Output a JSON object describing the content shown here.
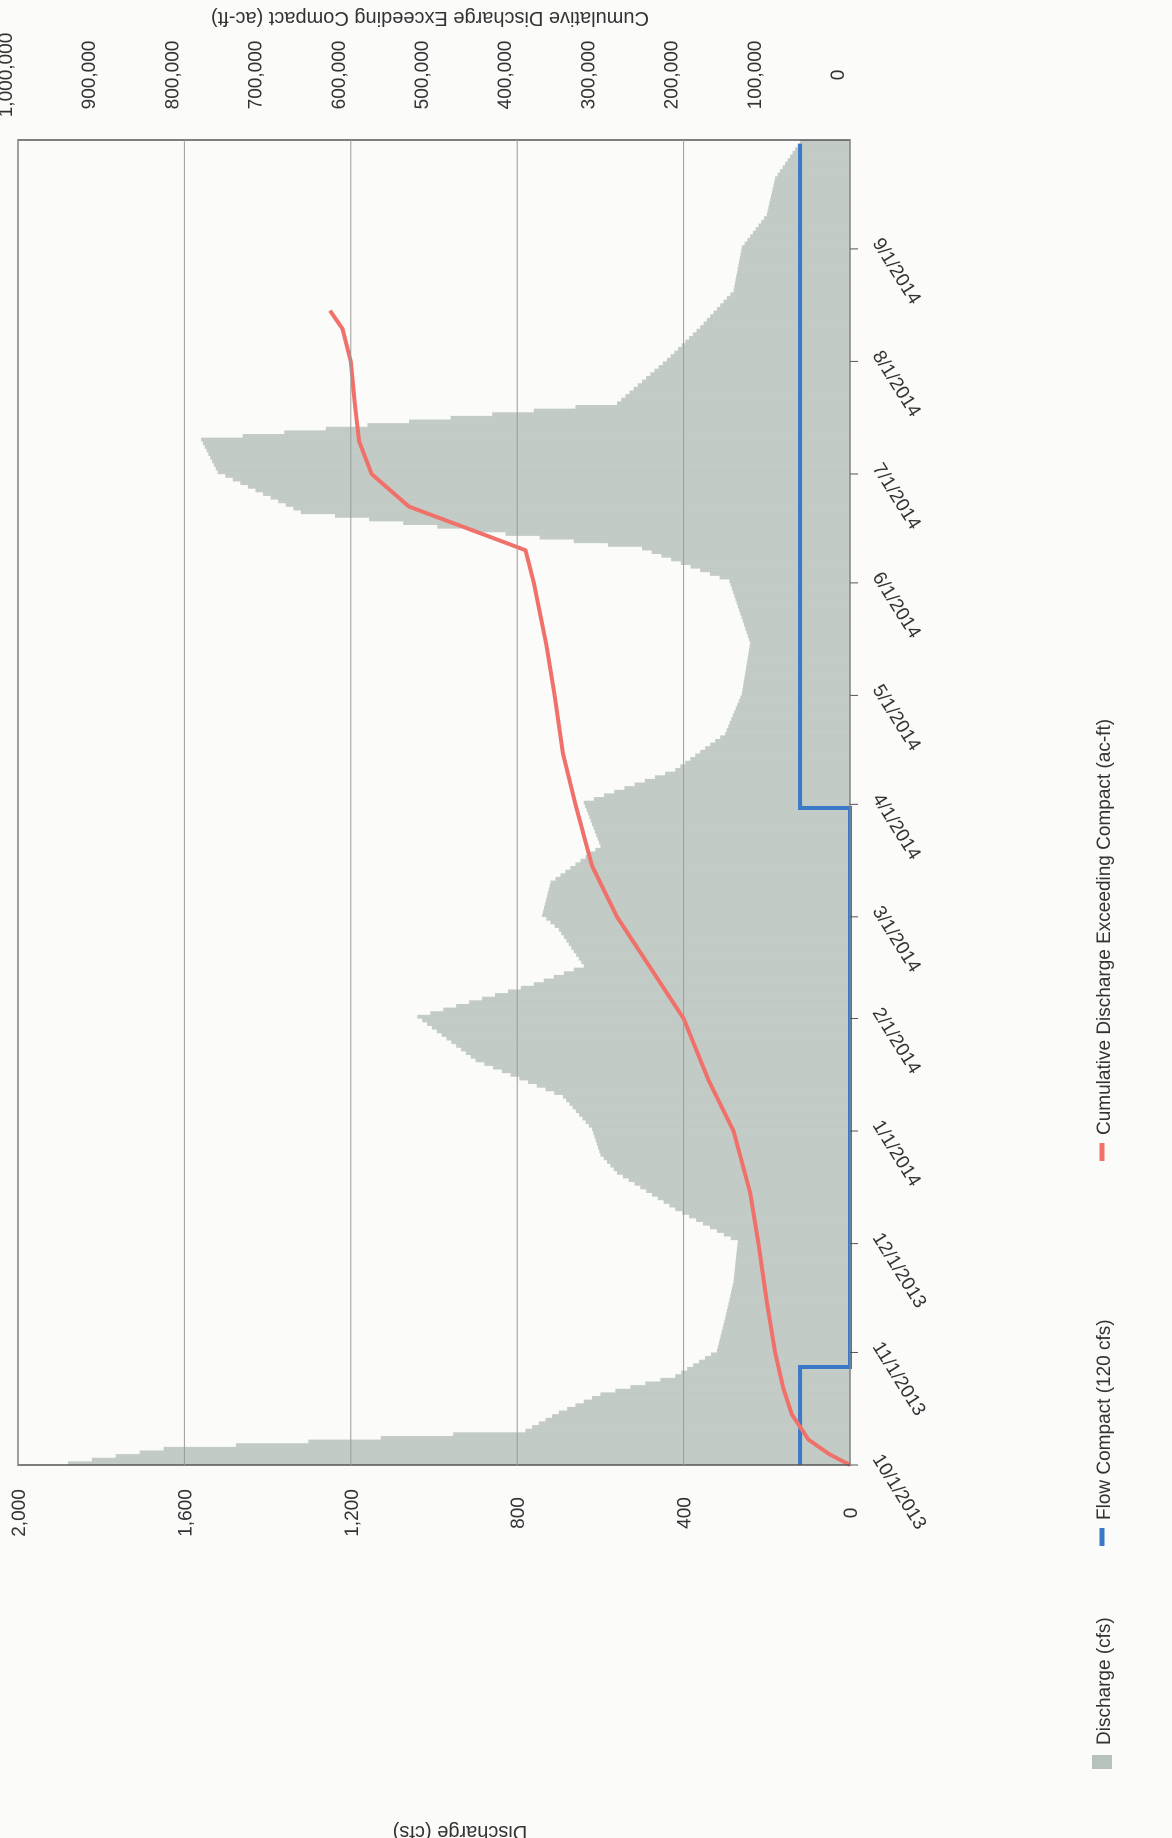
{
  "chart_data": {
    "type": "bar",
    "orientation": "rotated-90-clockwise",
    "x_axis": {
      "label": "",
      "tick_labels": [
        "10/1/2013",
        "11/1/2013",
        "12/1/2013",
        "1/1/2014",
        "2/1/2014",
        "3/1/2014",
        "4/1/2014",
        "5/1/2014",
        "6/1/2014",
        "7/1/2014",
        "8/1/2014",
        "9/1/2014"
      ],
      "range_days": [
        0,
        365
      ]
    },
    "y_axis_left": {
      "label": "Discharge (cfs)",
      "tick_labels": [
        "0",
        "400",
        "800",
        "1,200",
        "1,600",
        "2,000"
      ],
      "ticks": [
        0,
        400,
        800,
        1200,
        1600,
        2000
      ],
      "ylim": [
        0,
        2000
      ]
    },
    "y_axis_right": {
      "label": "Cumulative Discharge Exceeding Compact (ac-ft)",
      "tick_labels": [
        "0",
        "100,000",
        "200,000",
        "300,000",
        "400,000",
        "500,000",
        "600,000",
        "700,000",
        "800,000",
        "900,000",
        "1,000,000"
      ],
      "ticks": [
        0,
        100000,
        200000,
        300000,
        400000,
        500000,
        600000,
        700000,
        800000,
        900000,
        1000000
      ],
      "ylim": [
        0,
        1000000
      ]
    },
    "grid": true,
    "legend": {
      "placement": "bottom",
      "entries": [
        {
          "label": "Discharge (cfs)",
          "color": "#b8c2bc",
          "kind": "bar"
        },
        {
          "label": "Flow Compact (120 cfs)",
          "color": "#3a78c8",
          "kind": "line"
        },
        {
          "label": "Cumulative Discharge Exceeding Compact (ac-ft)",
          "color": "#f0706a",
          "kind": "line"
        }
      ]
    },
    "series": [
      {
        "name": "Discharge (cfs)",
        "type": "bar",
        "axis": "left",
        "color": "#b8c2bc",
        "x": [
          "10/1/2013",
          "10/5/2013",
          "10/10/2013",
          "10/15/2013",
          "10/20/2013",
          "10/25/2013",
          "11/1/2013",
          "11/10/2013",
          "11/20/2013",
          "12/1/2013",
          "12/10/2013",
          "12/20/2013",
          "12/25/2013",
          "1/1/2014",
          "1/10/2014",
          "1/20/2014",
          "2/1/2014",
          "2/10/2014",
          "2/15/2014",
          "2/25/2014",
          "3/1/2014",
          "3/10/2014",
          "3/20/2014",
          "4/1/2014",
          "4/10/2014",
          "4/20/2014",
          "5/1/2014",
          "5/15/2014",
          "6/1/2014",
          "6/10/2014",
          "6/20/2014",
          "7/1/2014",
          "7/10/2014",
          "7/20/2014",
          "8/1/2014",
          "8/10/2014",
          "8/20/2014",
          "9/1/2014",
          "9/10/2014",
          "9/20/2014",
          "9/30/2014"
        ],
        "values": [
          1880,
          1650,
          780,
          700,
          600,
          420,
          320,
          300,
          280,
          270,
          420,
          560,
          600,
          620,
          690,
          900,
          1040,
          760,
          640,
          700,
          740,
          720,
          600,
          640,
          420,
          300,
          260,
          240,
          290,
          500,
          1320,
          1520,
          1560,
          560,
          440,
          360,
          280,
          260,
          200,
          180,
          120
        ]
      },
      {
        "name": "Flow Compact (120 cfs)",
        "type": "line",
        "axis": "left",
        "color": "#3a78c8",
        "x": [
          "10/1/2013",
          "10/28/2013",
          "10/28/2013",
          "3/31/2014",
          "3/31/2014",
          "9/30/2014"
        ],
        "values": [
          120,
          120,
          0,
          0,
          120,
          120
        ]
      },
      {
        "name": "Cumulative Discharge Exceeding Compact (ac-ft)",
        "type": "line",
        "axis": "right",
        "color": "#f0706a",
        "x": [
          "10/1/2013",
          "10/4/2013",
          "10/8/2013",
          "10/15/2013",
          "10/22/2013",
          "11/1/2013",
          "11/15/2013",
          "12/1/2013",
          "12/15/2013",
          "1/1/2014",
          "1/15/2014",
          "2/1/2014",
          "2/15/2014",
          "3/1/2014",
          "3/15/2014",
          "4/1/2014",
          "4/15/2014",
          "5/1/2014",
          "5/15/2014",
          "6/1/2014",
          "6/10/2014",
          "6/16/2014",
          "6/22/2014",
          "7/1/2014",
          "7/10/2014",
          "7/20/2014",
          "8/1/2014",
          "8/10/2014",
          "8/15/2014"
        ],
        "values": [
          0,
          25000,
          50000,
          70000,
          80000,
          90000,
          100000,
          110000,
          120000,
          140000,
          170000,
          200000,
          240000,
          280000,
          310000,
          330000,
          345000,
          355000,
          365000,
          380000,
          390000,
          460000,
          530000,
          575000,
          590000,
          595000,
          600000,
          610000,
          625000
        ]
      }
    ]
  }
}
